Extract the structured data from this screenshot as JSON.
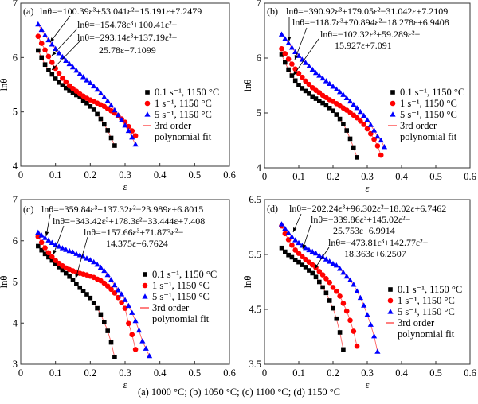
{
  "caption": "(a) 1000 °C; (b) 1050 °C; (c) 1100 °C; (d) 1150 °C",
  "colors": {
    "black_series": "#000000",
    "red_series": "#ff0000",
    "blue_series": "#0000ff",
    "fit_line": "#ff6060"
  },
  "legend": [
    "0.1 s⁻¹, 1150 °C",
    "1 s⁻¹, 1150 °C",
    "5 s⁻¹, 1150 °C",
    "3rd order",
    "polynomial fit"
  ],
  "chart_data": [
    {
      "type": "scatter",
      "panel_label": "(a)",
      "xlabel": "ε",
      "ylabel": "lnθ",
      "xlim": [
        0,
        0.6
      ],
      "ylim": [
        4,
        7
      ],
      "xticks": [
        "0",
        "0.1",
        "0.2",
        "0.3",
        "0.4",
        "0.5",
        "0.6"
      ],
      "yticks": [
        "4",
        "5",
        "6",
        "7"
      ],
      "equations": [
        "lnθ=−100.39ε³+53.041ε²−15.191ε+7.2479",
        "lnθ=−154.78ε³+100.41ε²−",
        "lnθ=−293.14ε³+137.19ε²−",
        "25.78ε+7.1099"
      ],
      "series": [
        {
          "name": "0.1 s⁻¹, 1150 °C",
          "marker": "square",
          "x0": 0.05,
          "dx": 0.01,
          "y": [
            6.13,
            6.0,
            5.87,
            5.77,
            5.69,
            5.61,
            5.54,
            5.49,
            5.44,
            5.39,
            5.35,
            5.31,
            5.27,
            5.21,
            5.16,
            5.1,
            5.04,
            4.96,
            4.87,
            4.77,
            4.66,
            4.52,
            4.38
          ]
        },
        {
          "name": "1 s⁻¹, 1150 °C",
          "marker": "circle",
          "x0": 0.05,
          "dx": 0.01,
          "y": [
            6.39,
            6.26,
            6.14,
            6.02,
            5.91,
            5.8,
            5.71,
            5.62,
            5.55,
            5.48,
            5.43,
            5.38,
            5.33,
            5.29,
            5.25,
            5.22,
            5.19,
            5.16,
            5.13,
            5.1,
            5.06,
            5.02,
            4.98,
            4.93,
            4.87,
            4.81,
            4.73,
            4.65,
            4.56
          ]
        },
        {
          "name": "5 s⁻¹, 1150 °C",
          "marker": "triangle",
          "x0": 0.05,
          "dx": 0.01,
          "y": [
            6.61,
            6.51,
            6.41,
            6.32,
            6.24,
            6.16,
            6.08,
            6.01,
            5.94,
            5.88,
            5.82,
            5.76,
            5.7,
            5.64,
            5.58,
            5.53,
            5.47,
            5.41,
            5.34,
            5.27,
            5.2,
            5.12,
            5.03,
            4.94,
            4.85,
            4.75,
            4.65,
            4.53,
            4.4
          ]
        }
      ]
    },
    {
      "type": "scatter",
      "panel_label": "(b)",
      "xlabel": "ε",
      "ylabel": "lnθ",
      "xlim": [
        0,
        0.6
      ],
      "ylim": [
        4,
        7
      ],
      "xticks": [
        "0",
        "0.1",
        "0.2",
        "0.3",
        "0.4",
        "0.5",
        "0.6"
      ],
      "yticks": [
        "4",
        "5",
        "6",
        "7"
      ],
      "equations": [
        "lnθ=−390.92ε³+179.05ε²−31.042ε+7.2109",
        "lnθ=−118.7ε³+70.894ε²−18.278ε+6.9408",
        "lnθ=−102.32ε³+59.289ε²−",
        "15.927ε+7.091"
      ],
      "series": [
        {
          "name": "0.1 s⁻¹, 1150 °C",
          "marker": "square",
          "x0": 0.05,
          "dx": 0.01,
          "y": [
            6.06,
            5.92,
            5.79,
            5.68,
            5.59,
            5.51,
            5.45,
            5.4,
            5.35,
            5.3,
            5.26,
            5.22,
            5.18,
            5.14,
            5.09,
            5.04,
            4.97,
            4.89,
            4.8,
            4.68,
            4.53,
            4.37,
            4.19
          ]
        },
        {
          "name": "1 s⁻¹, 1150 °C",
          "marker": "circle",
          "x0": 0.05,
          "dx": 0.01,
          "y": [
            6.17,
            6.08,
            5.98,
            5.89,
            5.8,
            5.72,
            5.65,
            5.58,
            5.52,
            5.46,
            5.41,
            5.37,
            5.32,
            5.28,
            5.24,
            5.21,
            5.17,
            5.13,
            5.09,
            5.05,
            5.01,
            4.96,
            4.91,
            4.85,
            4.79,
            4.71,
            4.62,
            4.52,
            4.4,
            4.23
          ]
        },
        {
          "name": "5 s⁻¹, 1150 °C",
          "marker": "triangle",
          "x0": 0.05,
          "dx": 0.01,
          "y": [
            6.43,
            6.35,
            6.27,
            6.19,
            6.11,
            6.04,
            5.97,
            5.91,
            5.85,
            5.79,
            5.73,
            5.68,
            5.63,
            5.58,
            5.53,
            5.48,
            5.43,
            5.38,
            5.33,
            5.27,
            5.21,
            5.15,
            5.09,
            5.02,
            4.95,
            4.87,
            4.78,
            4.68,
            4.57,
            4.5,
            4.38
          ]
        }
      ]
    },
    {
      "type": "scatter",
      "panel_label": "(c)",
      "xlabel": "ε",
      "ylabel": "lnθ",
      "xlim": [
        0,
        0.6
      ],
      "ylim": [
        3,
        7
      ],
      "xticks": [
        "0",
        "0.1",
        "0.2",
        "0.3",
        "0.4",
        "0.5",
        "0.6"
      ],
      "yticks": [
        "3",
        "4",
        "5",
        "6",
        "7"
      ],
      "equations": [
        "lnθ=−359.84ε³+137.32ε²−23.989ε+6.8015",
        "lnθ=−343.42ε³+178.3ε²−33.444ε+7.408",
        "lnθ=−157.66ε³+71.873ε²−",
        "14.375ε+6.7624"
      ],
      "series": [
        {
          "name": "0.1 s⁻¹, 1150 °C",
          "marker": "square",
          "x0": 0.05,
          "dx": 0.01,
          "y": [
            5.87,
            5.77,
            5.68,
            5.6,
            5.52,
            5.44,
            5.36,
            5.29,
            5.21,
            5.13,
            5.05,
            4.95,
            4.86,
            4.78,
            4.7,
            4.61,
            4.49,
            4.36,
            4.21,
            4.02,
            3.81,
            3.53,
            3.17
          ]
        },
        {
          "name": "1 s⁻¹, 1150 °C",
          "marker": "circle",
          "x0": 0.05,
          "dx": 0.01,
          "y": [
            6.1,
            5.96,
            5.83,
            5.71,
            5.61,
            5.52,
            5.45,
            5.39,
            5.34,
            5.3,
            5.27,
            5.24,
            5.21,
            5.19,
            5.17,
            5.14,
            5.11,
            5.07,
            5.03,
            4.97,
            4.9,
            4.82,
            4.73,
            4.62,
            4.5,
            4.36,
            3.99,
            3.72,
            3.36
          ]
        },
        {
          "name": "5 s⁻¹, 1150 °C",
          "marker": "triangle",
          "x0": 0.05,
          "dx": 0.01,
          "y": [
            6.2,
            6.13,
            6.07,
            6.01,
            5.95,
            5.9,
            5.86,
            5.82,
            5.78,
            5.75,
            5.72,
            5.68,
            5.65,
            5.61,
            5.57,
            5.53,
            5.48,
            5.42,
            5.35,
            5.27,
            5.17,
            5.05,
            4.92,
            4.8,
            4.7,
            4.56,
            4.42,
            4.25,
            4.05,
            3.82,
            3.56,
            3.38,
            3.2
          ]
        }
      ]
    },
    {
      "type": "scatter",
      "panel_label": "(d)",
      "xlabel": "ε",
      "ylabel": "lnθ",
      "xlim": [
        0,
        0.6
      ],
      "ylim": [
        3.5,
        6.5
      ],
      "xticks": [
        "0",
        "0.1",
        "0.2",
        "0.3",
        "0.4",
        "0.5",
        "0.6"
      ],
      "yticks": [
        "3.5",
        "4.5",
        "5.5",
        "6.5"
      ],
      "equations": [
        "lnθ=−202.24ε³+96.302ε²−18.02ε+6.7462",
        "lnθ=−339.86ε³+145.02ε²−",
        "25.753ε+6.9914",
        "lnθ=−473.81ε³+142.77ε²−",
        "18.363ε+6.2507"
      ],
      "series": [
        {
          "name": "0.1 s⁻¹, 1150 °C",
          "marker": "square",
          "x0": 0.05,
          "dx": 0.01,
          "y": [
            5.62,
            5.55,
            5.49,
            5.45,
            5.4,
            5.36,
            5.31,
            5.27,
            5.21,
            5.16,
            5.09,
            5.0,
            4.9,
            4.8,
            4.66,
            4.52,
            4.33,
            4.08,
            3.77
          ]
        },
        {
          "name": "1 s⁻¹, 1150 °C",
          "marker": "circle",
          "x0": 0.05,
          "dx": 0.01,
          "y": [
            6.02,
            5.88,
            5.77,
            5.67,
            5.58,
            5.52,
            5.46,
            5.41,
            5.36,
            5.31,
            5.26,
            5.19,
            5.13,
            5.06,
            4.99,
            4.9,
            4.83,
            4.74,
            4.61,
            4.47,
            4.3,
            4.1,
            3.83
          ]
        },
        {
          "name": "5 s⁻¹, 1150 °C",
          "marker": "triangle",
          "x0": 0.05,
          "dx": 0.01,
          "y": [
            6.05,
            5.97,
            5.89,
            5.82,
            5.76,
            5.71,
            5.66,
            5.62,
            5.58,
            5.55,
            5.52,
            5.48,
            5.45,
            5.41,
            5.37,
            5.33,
            5.3,
            5.24,
            5.17,
            5.1,
            5.03,
            4.95,
            4.83,
            4.71,
            4.57,
            4.4,
            4.22,
            4.01,
            3.73
          ]
        }
      ]
    }
  ]
}
